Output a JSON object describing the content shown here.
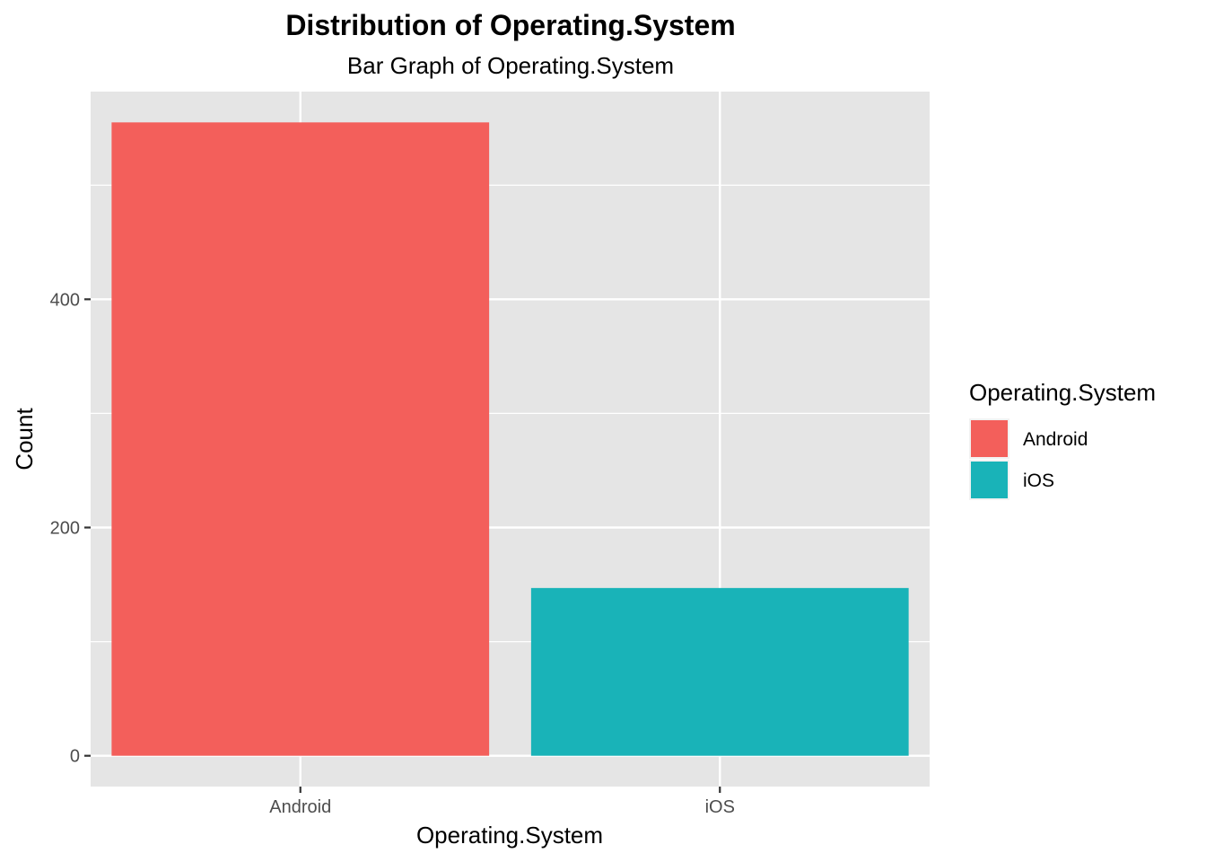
{
  "chart_data": {
    "type": "bar",
    "title": "Distribution of Operating.System",
    "subtitle": "Bar Graph of Operating.System",
    "xlabel": "Operating.System",
    "ylabel": "Count",
    "categories": [
      "Android",
      "iOS"
    ],
    "values": [
      555,
      147
    ],
    "colors": [
      "#F35F5B",
      "#19B3B8"
    ],
    "ylim": [
      -27,
      582
    ],
    "y_ticks": [
      0,
      200,
      400
    ],
    "y_minor_ticks": [
      100,
      300,
      500
    ],
    "grid": true,
    "legend": {
      "title": "Operating.System",
      "position": "right",
      "entries": [
        "Android",
        "iOS"
      ]
    }
  }
}
